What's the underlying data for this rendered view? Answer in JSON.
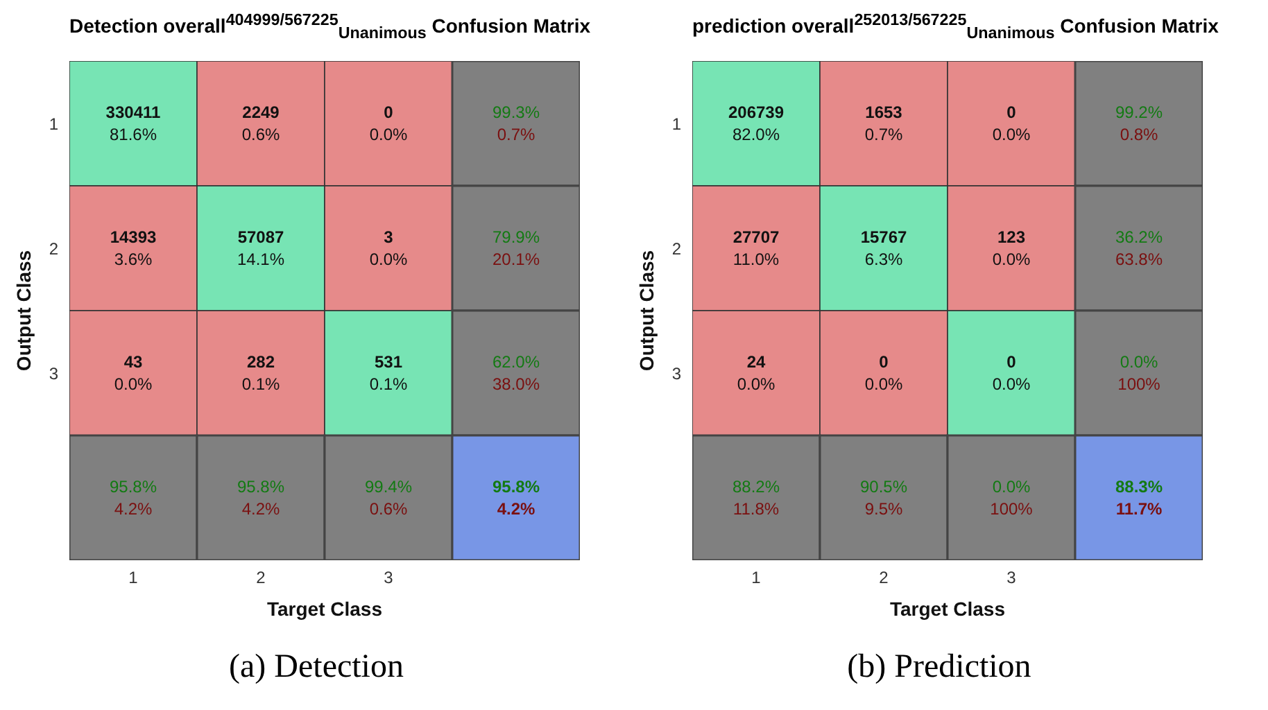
{
  "chart_data": [
    {
      "type": "heatmap",
      "title": "Detection overall$^{404999/567225}$$_{Unanimous}$ Confusion Matrix",
      "xlabel": "Target Class",
      "ylabel": "Output Class",
      "categories": [
        "1",
        "2",
        "3",
        null
      ],
      "y_categories": [
        "1",
        "2",
        "3",
        null
      ],
      "cells": [
        [
          330411,
          2249,
          0,
          99.3
        ],
        [
          14393,
          57087,
          3,
          79.9
        ],
        [
          43,
          282,
          531,
          62.0
        ],
        [
          95.8,
          95.8,
          99.4,
          95.8
        ]
      ],
      "cell_labels": [
        [
          "330411",
          "2249",
          "0",
          "99.3%"
        ],
        [
          "14393",
          "57087",
          "3",
          "79.9%"
        ],
        [
          "43",
          "282",
          "531",
          "62.0%"
        ],
        [
          "95.8%",
          "95.8%",
          "99.4%",
          "95.8%"
        ]
      ],
      "colors": [
        [
          "#77e4b4",
          "#e68a8a",
          "#e68a8a",
          "#808080"
        ],
        [
          "#e68a8a",
          "#77e4b4",
          "#e68a8a",
          "#808080"
        ],
        [
          "#e68a8a",
          "#e68a8a",
          "#77e4b4",
          "#808080"
        ],
        [
          "#808080",
          "#808080",
          "#808080",
          "#7896e6"
        ]
      ],
      "annotations": [
        "81.6%",
        "0.6%",
        "0.0%",
        "0.7%",
        "3.6%",
        "14.1%",
        "0.0%",
        "20.1%",
        "0.0%",
        "0.1%",
        "0.1%",
        "38.0%",
        "4.2%",
        "4.2%",
        "0.6%",
        "4.2%",
        "(a) Detection"
      ]
    },
    {
      "type": "heatmap",
      "title": "prediction overall$^{252013/567225}$$_{Unanimous}$ Confusion Matrix",
      "xlabel": "Target Class",
      "ylabel": "Output Class",
      "categories": [
        "1",
        "2",
        "3",
        null
      ],
      "y_categories": [
        "1",
        "2",
        "3",
        null
      ],
      "cells": [
        [
          206739,
          1653,
          0,
          99.2
        ],
        [
          27707,
          15767,
          123,
          36.2
        ],
        [
          24,
          0,
          0,
          0.0
        ],
        [
          88.2,
          90.5,
          0.0,
          88.3
        ]
      ],
      "cell_labels": [
        [
          "206739",
          "1653",
          "0",
          "99.2%"
        ],
        [
          "27707",
          "15767",
          "123",
          "36.2%"
        ],
        [
          "24",
          "0",
          "0",
          "0.0%"
        ],
        [
          "88.2%",
          "90.5%",
          "0.0%",
          "88.3%"
        ]
      ],
      "colors": [
        [
          "#77e4b4",
          "#e68a8a",
          "#e68a8a",
          "#808080"
        ],
        [
          "#e68a8a",
          "#77e4b4",
          "#e68a8a",
          "#808080"
        ],
        [
          "#e68a8a",
          "#e68a8a",
          "#77e4b4",
          "#808080"
        ],
        [
          "#808080",
          "#808080",
          "#808080",
          "#7896e6"
        ]
      ],
      "annotations": [
        "82.0%",
        "0.7%",
        "0.0%",
        "0.8%",
        "11.0%",
        "6.3%",
        "0.0%",
        "63.8%",
        "0.0%",
        "0.0%",
        "0.0%",
        "100%",
        "11.8%",
        "9.5%",
        "100%",
        "11.7%",
        "(b) Prediction"
      ]
    }
  ]
}
